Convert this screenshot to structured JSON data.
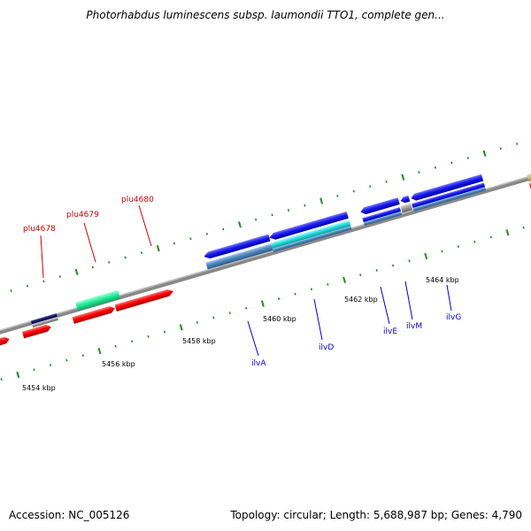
{
  "title": "Photorhabdus luminescens subsp. laumondii TTO1, complete gen...",
  "footer": {
    "accession": "Accession: NC_005126",
    "summary": "Topology: circular; Length: 5,688,987 bp; Genes: 4,790"
  },
  "colors": {
    "red_gene": "#ff0000",
    "blue_gene": "#1a1aee",
    "cyan_gene": "#22dddd",
    "mint_gene": "#22ee99",
    "steel_rna": "#4d88c0",
    "backbone": "#888888",
    "tick": "#228822",
    "red_label": "#cc0000",
    "blue_label": "#0000cc"
  },
  "scale_labels": [
    "5454 kbp",
    "5456 kbp",
    "5458 kbp",
    "5460 kbp",
    "5462 kbp",
    "5464 kbp"
  ],
  "gene_labels": {
    "plu4678": "plu4678",
    "plu4679": "plu4679",
    "plu4680": "plu4680",
    "ilvA": "ilvA",
    "ilvD": "ilvD",
    "ilvE": "ilvE",
    "ilvM": "ilvM",
    "ilvG": "ilvG"
  }
}
